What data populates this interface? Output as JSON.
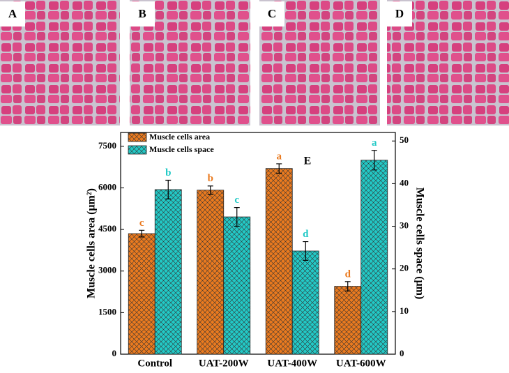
{
  "panels": [
    "A",
    "B",
    "C",
    "D"
  ],
  "chart_data": {
    "type": "bar",
    "panel_label": "E",
    "y_label": "Muscle cells area (μm²)",
    "y2_label": "Muscle cells space (μm)",
    "categories": [
      "Control",
      "UAT-200W",
      "UAT-400W",
      "UAT-600W"
    ],
    "series": [
      {
        "name": "Muscle cells area",
        "color": "#ea7a1f",
        "values": [
          4350,
          5920,
          6700,
          2450
        ],
        "errors": [
          120,
          150,
          170,
          170
        ],
        "labels": [
          "c",
          "b",
          "a",
          "d"
        ]
      },
      {
        "name": "Muscle cells space",
        "color": "#22c9c6",
        "axis": "y2",
        "values": [
          38.6,
          32.2,
          24.2,
          45.5
        ],
        "errors": [
          2.2,
          2.2,
          2.2,
          2.3
        ],
        "labels": [
          "b",
          "c",
          "d",
          "a"
        ]
      }
    ],
    "ylim": [
      0,
      8000
    ],
    "yticks": [
      0,
      1500,
      3000,
      4500,
      6000,
      7500
    ],
    "y2lim": [
      0,
      52
    ],
    "y2ticks": [
      0,
      10,
      20,
      30,
      40,
      50
    ],
    "legend": "upper left"
  }
}
